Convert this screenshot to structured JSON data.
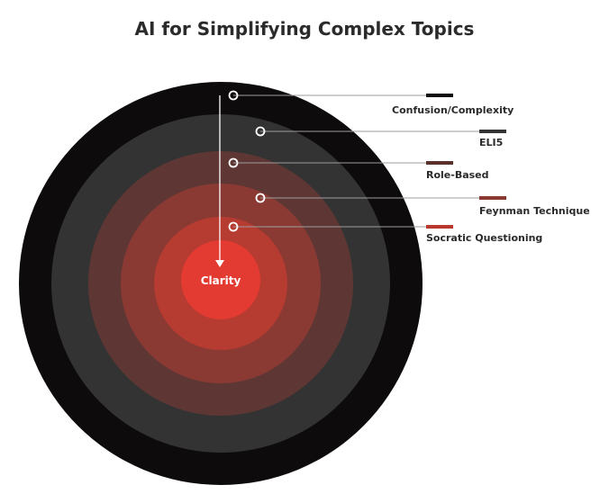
{
  "title": "AI for Simplifying Complex Topics",
  "center_label": "Clarity",
  "layers": [
    {
      "label": "Confusion/Complexity",
      "color": "#0d0b0b",
      "legend_color": "#0d0b0b"
    },
    {
      "label": "ELI5",
      "color": "#333333",
      "legend_color": "#333333"
    },
    {
      "label": "Role-Based",
      "color": "#5e3734",
      "legend_color": "#5a302c"
    },
    {
      "label": "Feynman Technique",
      "color": "#8a3a33",
      "legend_color": "#8c3832"
    },
    {
      "label": "Socratic Questioning",
      "color": "#b63b31",
      "legend_color": "#b8382e"
    }
  ],
  "center_color": "#e33b32"
}
